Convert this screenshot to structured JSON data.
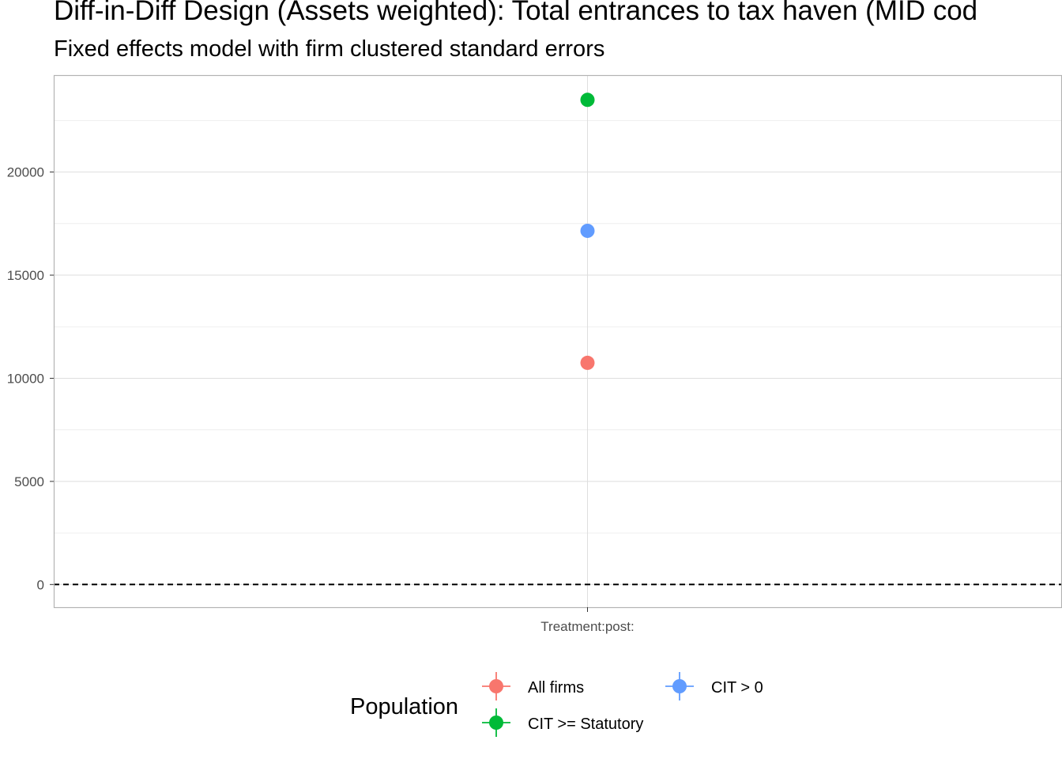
{
  "chart_data": {
    "type": "scatter",
    "title": "Diff-in-Diff Design (Assets weighted): Total entrances to tax haven (MID cod",
    "subtitle": "Fixed effects model with firm clustered standard errors",
    "xlabel": "",
    "ylabel": "",
    "categories": [
      "Treatment:post:"
    ],
    "ylim": [
      -1100,
      24700
    ],
    "y_ticks": [
      0,
      5000,
      10000,
      15000,
      20000
    ],
    "y_tick_labels": [
      "0",
      "5000",
      "10000",
      "15000",
      "20000"
    ],
    "reference_line": {
      "y": 0,
      "style": "dashed"
    },
    "grid": true,
    "series": [
      {
        "name": "All firms",
        "color": "#F8766D",
        "values": [
          10750
        ]
      },
      {
        "name": "CIT > 0",
        "color": "#619CFF",
        "values": [
          17150
        ]
      },
      {
        "name": "CIT >= Statutory",
        "color": "#00BA38",
        "values": [
          23500
        ]
      }
    ],
    "legend": {
      "title": "Population",
      "position": "bottom",
      "entries": [
        "All firms",
        "CIT > 0",
        "CIT >= Statutory"
      ]
    }
  }
}
